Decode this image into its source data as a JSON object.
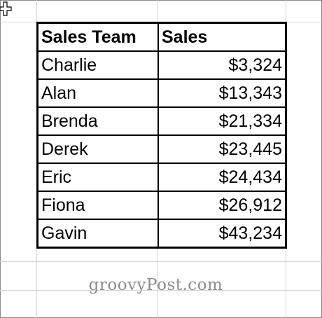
{
  "table": {
    "headers": {
      "team": "Sales Team",
      "sales": "Sales"
    },
    "rows": [
      {
        "team": "Charlie",
        "sales": "$3,324"
      },
      {
        "team": "Alan",
        "sales": "$13,343"
      },
      {
        "team": "Brenda",
        "sales": "$21,334"
      },
      {
        "team": "Derek",
        "sales": "$23,445"
      },
      {
        "team": "Eric",
        "sales": "$24,434"
      },
      {
        "team": "Fiona",
        "sales": "$26,912"
      },
      {
        "team": "Gavin",
        "sales": "$43,234"
      }
    ]
  },
  "watermark": "groovyPost.com",
  "colors": {
    "gridline": "#d4d4d4",
    "table_border": "#000000",
    "watermark": "#8c8c8c"
  },
  "icons": {
    "cursor": "cell-select-cross-icon"
  }
}
